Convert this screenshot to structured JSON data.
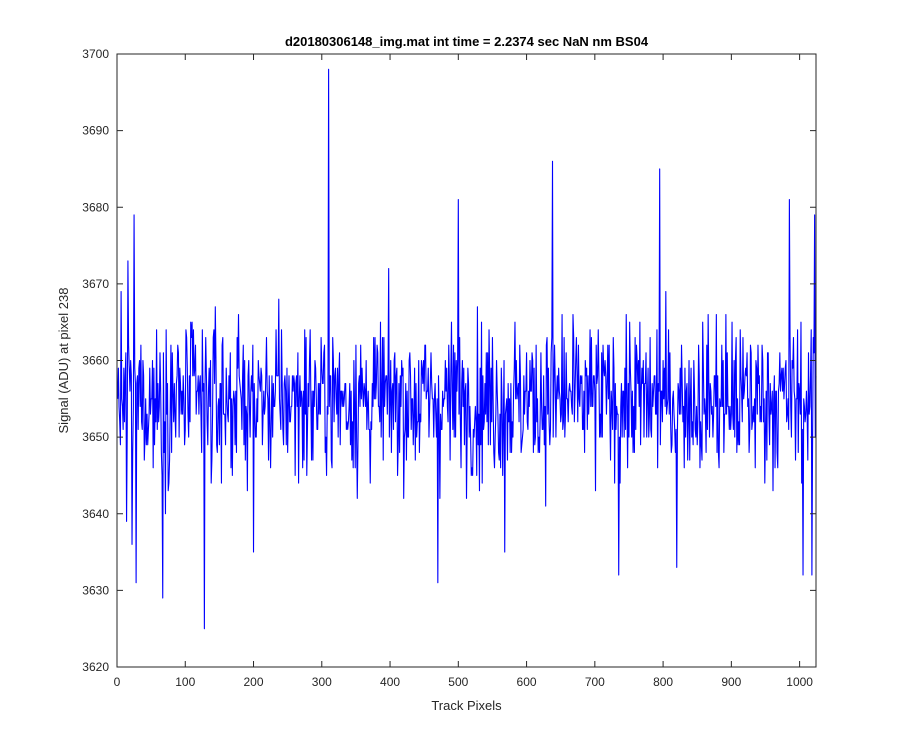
{
  "chart_data": {
    "type": "line",
    "title": "d20180306148_img.mat int time = 2.2374 sec  NaN nm BS04",
    "xlabel": "Track Pixels",
    "ylabel": "Signal (ADU) at pixel 238",
    "xlim": [
      0,
      1024
    ],
    "ylim": [
      3620,
      3700
    ],
    "xticks": [
      "0",
      "100",
      "200",
      "300",
      "400",
      "500",
      "600",
      "700",
      "800",
      "900",
      "1000"
    ],
    "yticks": [
      "3620",
      "3630",
      "3640",
      "3650",
      "3660",
      "3670",
      "3680",
      "3690",
      "3700"
    ],
    "grid": false,
    "series": [
      {
        "color": "#0000ff",
        "y_mean": 3655,
        "noise_amplitude": 8,
        "sample_count": 1024,
        "notable_points": [
          {
            "x": 1,
            "y": 3655
          },
          {
            "x": 14,
            "y": 3639
          },
          {
            "x": 16,
            "y": 3673
          },
          {
            "x": 22,
            "y": 3636
          },
          {
            "x": 25,
            "y": 3679
          },
          {
            "x": 28,
            "y": 3631
          },
          {
            "x": 67,
            "y": 3629
          },
          {
            "x": 128,
            "y": 3625
          },
          {
            "x": 200,
            "y": 3635
          },
          {
            "x": 310,
            "y": 3698
          },
          {
            "x": 470,
            "y": 3631
          },
          {
            "x": 500,
            "y": 3681
          },
          {
            "x": 568,
            "y": 3635
          },
          {
            "x": 638,
            "y": 3686
          },
          {
            "x": 735,
            "y": 3632
          },
          {
            "x": 795,
            "y": 3685
          },
          {
            "x": 820,
            "y": 3633
          },
          {
            "x": 985,
            "y": 3681
          },
          {
            "x": 1005,
            "y": 3632
          },
          {
            "x": 1018,
            "y": 3632
          },
          {
            "x": 1022,
            "y": 3679
          },
          {
            "x": 1024,
            "y": 3658
          }
        ]
      }
    ]
  }
}
